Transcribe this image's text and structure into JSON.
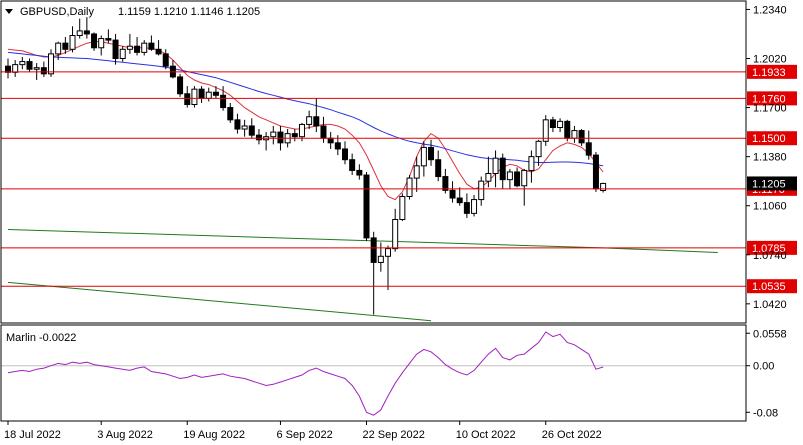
{
  "chart_data": [
    {
      "type": "candlestick",
      "title": "GBPUSD,Daily",
      "ohlc_readout": "1.1159 1.1210 1.1146 1.1205",
      "ylim": [
        1.0295,
        1.2395
      ],
      "price_ticks": [
        "1.2340",
        "1.2020",
        "1.1700",
        "1.1380",
        "1.1060",
        "1.0740",
        "1.0420"
      ],
      "x_tick_labels": [
        "18 Jul 2022",
        "3 Aug 2022",
        "19 Aug 2022",
        "6 Sep 2022",
        "22 Sep 2022",
        "10 Oct 2022",
        "26 Oct 2022"
      ],
      "x_tick_index": [
        0,
        13,
        25,
        38,
        50,
        63,
        75
      ],
      "levels": [
        {
          "value": 1.1933,
          "label": "1.1933"
        },
        {
          "value": 1.176,
          "label": "1.1760"
        },
        {
          "value": 1.15,
          "label": "1.1500"
        },
        {
          "value": 1.117,
          "label": "1.1170"
        },
        {
          "value": 1.0785,
          "label": "1.0785"
        },
        {
          "value": 1.0535,
          "label": "1.0535"
        }
      ],
      "level_color": "#e00000",
      "current_price": "1.1205",
      "candles": [
        [
          1.197,
          1.202,
          1.189,
          1.193
        ],
        [
          1.193,
          1.201,
          1.19,
          1.198
        ],
        [
          1.198,
          1.203,
          1.195,
          1.2
        ],
        [
          1.2,
          1.202,
          1.193,
          1.195
        ],
        [
          1.195,
          1.199,
          1.188,
          1.196
        ],
        [
          1.196,
          1.2,
          1.19,
          1.192
        ],
        [
          1.192,
          1.208,
          1.19,
          1.205
        ],
        [
          1.205,
          1.213,
          1.201,
          1.212
        ],
        [
          1.212,
          1.216,
          1.205,
          1.208
        ],
        [
          1.208,
          1.223,
          1.206,
          1.217
        ],
        [
          1.217,
          1.228,
          1.215,
          1.22
        ],
        [
          1.22,
          1.229,
          1.215,
          1.218
        ],
        [
          1.218,
          1.219,
          1.207,
          1.209
        ],
        [
          1.209,
          1.217,
          1.204,
          1.215
        ],
        [
          1.215,
          1.221,
          1.212,
          1.214
        ],
        [
          1.214,
          1.218,
          1.198,
          1.202
        ],
        [
          1.202,
          1.21,
          1.2,
          1.208
        ],
        [
          1.208,
          1.218,
          1.205,
          1.21
        ],
        [
          1.21,
          1.216,
          1.204,
          1.206
        ],
        [
          1.206,
          1.214,
          1.204,
          1.212
        ],
        [
          1.212,
          1.217,
          1.207,
          1.208
        ],
        [
          1.208,
          1.214,
          1.204,
          1.205
        ],
        [
          1.205,
          1.208,
          1.195,
          1.197
        ],
        [
          1.197,
          1.201,
          1.189,
          1.19
        ],
        [
          1.19,
          1.192,
          1.177,
          1.179
        ],
        [
          1.179,
          1.184,
          1.17,
          1.172
        ],
        [
          1.172,
          1.184,
          1.17,
          1.182
        ],
        [
          1.182,
          1.184,
          1.173,
          1.176
        ],
        [
          1.176,
          1.183,
          1.174,
          1.18
        ],
        [
          1.18,
          1.184,
          1.176,
          1.178
        ],
        [
          1.178,
          1.184,
          1.168,
          1.17
        ],
        [
          1.17,
          1.173,
          1.16,
          1.162
        ],
        [
          1.162,
          1.166,
          1.153,
          1.156
        ],
        [
          1.156,
          1.162,
          1.151,
          1.158
        ],
        [
          1.158,
          1.163,
          1.15,
          1.152
        ],
        [
          1.152,
          1.156,
          1.146,
          1.149
        ],
        [
          1.149,
          1.154,
          1.142,
          1.151
        ],
        [
          1.151,
          1.158,
          1.146,
          1.154
        ],
        [
          1.154,
          1.158,
          1.142,
          1.147
        ],
        [
          1.147,
          1.156,
          1.144,
          1.153
        ],
        [
          1.153,
          1.156,
          1.148,
          1.151
        ],
        [
          1.151,
          1.16,
          1.148,
          1.159
        ],
        [
          1.159,
          1.168,
          1.156,
          1.164
        ],
        [
          1.164,
          1.176,
          1.154,
          1.158
        ],
        [
          1.158,
          1.164,
          1.147,
          1.15
        ],
        [
          1.15,
          1.154,
          1.143,
          1.147
        ],
        [
          1.147,
          1.152,
          1.139,
          1.143
        ],
        [
          1.143,
          1.148,
          1.133,
          1.136
        ],
        [
          1.136,
          1.14,
          1.126,
          1.129
        ],
        [
          1.129,
          1.133,
          1.123,
          1.126
        ],
        [
          1.126,
          1.128,
          1.083,
          1.085
        ],
        [
          1.085,
          1.089,
          1.035,
          1.069
        ],
        [
          1.069,
          1.082,
          1.063,
          1.073
        ],
        [
          1.073,
          1.08,
          1.051,
          1.078
        ],
        [
          1.078,
          1.104,
          1.076,
          1.097
        ],
        [
          1.097,
          1.114,
          1.096,
          1.112
        ],
        [
          1.112,
          1.126,
          1.11,
          1.124
        ],
        [
          1.124,
          1.138,
          1.115,
          1.132
        ],
        [
          1.132,
          1.148,
          1.125,
          1.144
        ],
        [
          1.144,
          1.149,
          1.132,
          1.136
        ],
        [
          1.136,
          1.142,
          1.122,
          1.125
        ],
        [
          1.125,
          1.13,
          1.114,
          1.116
        ],
        [
          1.116,
          1.122,
          1.108,
          1.111
        ],
        [
          1.111,
          1.118,
          1.106,
          1.108
        ],
        [
          1.108,
          1.114,
          1.098,
          1.101
        ],
        [
          1.101,
          1.113,
          1.099,
          1.11
        ],
        [
          1.11,
          1.125,
          1.106,
          1.122
        ],
        [
          1.122,
          1.138,
          1.118,
          1.127
        ],
        [
          1.127,
          1.142,
          1.118,
          1.137
        ],
        [
          1.137,
          1.14,
          1.117,
          1.123
        ],
        [
          1.123,
          1.13,
          1.117,
          1.128
        ],
        [
          1.128,
          1.131,
          1.118,
          1.119
        ],
        [
          1.119,
          1.13,
          1.106,
          1.129
        ],
        [
          1.129,
          1.142,
          1.121,
          1.138
        ],
        [
          1.138,
          1.149,
          1.132,
          1.148
        ],
        [
          1.148,
          1.165,
          1.145,
          1.162
        ],
        [
          1.162,
          1.164,
          1.154,
          1.157
        ],
        [
          1.157,
          1.163,
          1.154,
          1.161
        ],
        [
          1.161,
          1.162,
          1.148,
          1.15
        ],
        [
          1.15,
          1.158,
          1.147,
          1.155
        ],
        [
          1.155,
          1.156,
          1.145,
          1.147
        ],
        [
          1.147,
          1.155,
          1.136,
          1.139
        ],
        [
          1.139,
          1.141,
          1.115,
          1.117
        ],
        [
          1.1159,
          1.121,
          1.1146,
          1.1205
        ]
      ],
      "indicators": [
        {
          "name": "Moving average (red)",
          "color": "#e0303c",
          "values": [
            1.208,
            1.2075,
            1.207,
            1.2055,
            1.204,
            1.203,
            1.203,
            1.204,
            1.206,
            1.208,
            1.21,
            1.212,
            1.213,
            1.213,
            1.212,
            1.211,
            1.21,
            1.209,
            1.209,
            1.209,
            1.2085,
            1.2075,
            1.205,
            1.201,
            1.196,
            1.191,
            1.188,
            1.186,
            1.185,
            1.183,
            1.181,
            1.178,
            1.174,
            1.17,
            1.167,
            1.164,
            1.162,
            1.16,
            1.158,
            1.157,
            1.156,
            1.156,
            1.157,
            1.158,
            1.159,
            1.159,
            1.158,
            1.156,
            1.152,
            1.147,
            1.139,
            1.129,
            1.119,
            1.112,
            1.11,
            1.115,
            1.125,
            1.138,
            1.148,
            1.153,
            1.15,
            1.143,
            1.135,
            1.127,
            1.12,
            1.117,
            1.118,
            1.122,
            1.127,
            1.131,
            1.133,
            1.132,
            1.129,
            1.128,
            1.13,
            1.136,
            1.142,
            1.145,
            1.147,
            1.146,
            1.144,
            1.14,
            1.134,
            1.128
          ]
        },
        {
          "name": "Moving average (blue)",
          "color": "#2a32e0",
          "values": [
            1.206,
            1.2055,
            1.205,
            1.2045,
            1.204,
            1.2035,
            1.203,
            1.2028,
            1.2026,
            1.2024,
            1.2022,
            1.202,
            1.2015,
            1.201,
            1.2005,
            1.2,
            1.1995,
            1.199,
            1.1985,
            1.198,
            1.1975,
            1.197,
            1.1963,
            1.1955,
            1.1945,
            1.1935,
            1.1925,
            1.1915,
            1.1905,
            1.1895,
            1.188,
            1.1865,
            1.185,
            1.1835,
            1.182,
            1.1805,
            1.1792,
            1.178,
            1.1768,
            1.1755,
            1.1745,
            1.1735,
            1.1725,
            1.1712,
            1.17,
            1.1686,
            1.167,
            1.1655,
            1.164,
            1.162,
            1.1595,
            1.157,
            1.1548,
            1.1528,
            1.151,
            1.1494,
            1.148,
            1.147,
            1.1462,
            1.1455,
            1.1445,
            1.1432,
            1.1418,
            1.1405,
            1.1392,
            1.1382,
            1.1374,
            1.1368,
            1.1364,
            1.1362,
            1.136,
            1.1356,
            1.135,
            1.1345,
            1.1342,
            1.1342,
            1.1343,
            1.1345,
            1.1345,
            1.1343,
            1.134,
            1.1335,
            1.1328,
            1.132
          ]
        },
        {
          "name": "Long-term moving average (green, upper)",
          "color": "#1f7a1f",
          "points": [
            [
              0,
              1.0905
            ],
            [
              83,
              1.0785
            ],
            [
              99,
              1.0755
            ]
          ]
        },
        {
          "name": "Long-term moving average (green, lower)",
          "color": "#1f7a1f",
          "points": [
            [
              0,
              1.056
            ],
            [
              59,
              1.031
            ]
          ]
        }
      ]
    },
    {
      "type": "line",
      "title": "Marlin -0.0022",
      "name": "Marlin",
      "color": "#a020c0",
      "ylim": [
        -0.095,
        0.07
      ],
      "ticks": [
        "0.0558",
        "0.00",
        "-0.08"
      ],
      "zero_line": true,
      "values": [
        -0.012,
        -0.01,
        -0.008,
        -0.01,
        -0.006,
        -0.004,
        0.0,
        0.004,
        0.002,
        0.006,
        0.004,
        0.006,
        0.002,
        0.0,
        -0.002,
        -0.004,
        -0.006,
        -0.008,
        -0.004,
        -0.002,
        -0.01,
        -0.012,
        -0.014,
        -0.018,
        -0.022,
        -0.02,
        -0.016,
        -0.02,
        -0.018,
        -0.016,
        -0.014,
        -0.018,
        -0.02,
        -0.022,
        -0.026,
        -0.03,
        -0.034,
        -0.032,
        -0.028,
        -0.024,
        -0.02,
        -0.016,
        -0.008,
        -0.004,
        -0.01,
        -0.014,
        -0.018,
        -0.022,
        -0.034,
        -0.052,
        -0.08,
        -0.085,
        -0.076,
        -0.052,
        -0.03,
        -0.012,
        0.004,
        0.02,
        0.028,
        0.024,
        0.014,
        0.002,
        -0.006,
        -0.012,
        -0.016,
        -0.008,
        0.006,
        0.02,
        0.03,
        0.014,
        0.01,
        0.018,
        0.02,
        0.03,
        0.04,
        0.058,
        0.05,
        0.054,
        0.04,
        0.036,
        0.028,
        0.02,
        -0.006,
        -0.0022
      ]
    }
  ]
}
